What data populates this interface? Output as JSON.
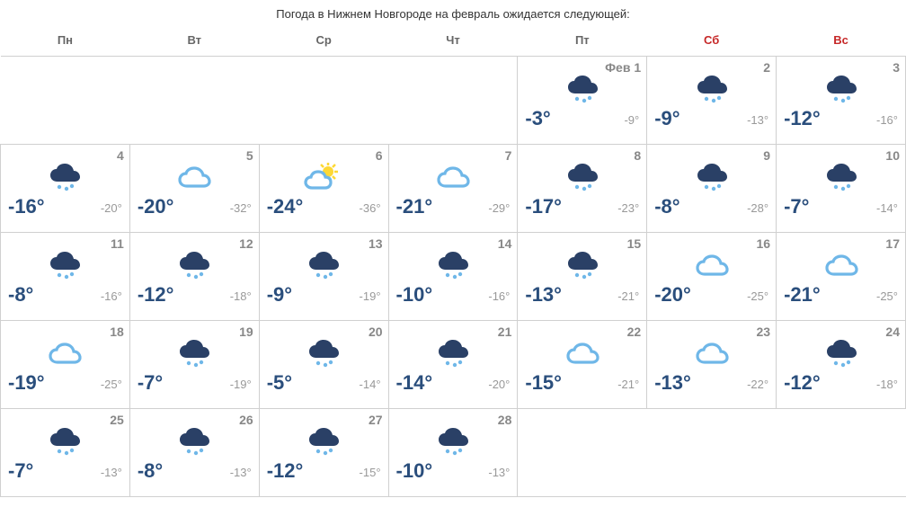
{
  "title": "Погода в Нижнем Новгороде на февраль ожидается следующей:",
  "month_label": "Фев",
  "colors": {
    "hi_temp": "#2a4e7c",
    "lo_temp": "#999999",
    "daynum": "#888888",
    "border": "#d0d0d0",
    "weekday_header": "#666666",
    "weekend_header": "#c62828",
    "icon_dark": "#2a4066",
    "icon_light": "#6fb7e8",
    "icon_sun": "#fdd835"
  },
  "weekdays": [
    {
      "short": "Пн",
      "weekend": false
    },
    {
      "short": "Вт",
      "weekend": false
    },
    {
      "short": "Ср",
      "weekend": false
    },
    {
      "short": "Чт",
      "weekend": false
    },
    {
      "short": "Пт",
      "weekend": false
    },
    {
      "short": "Сб",
      "weekend": true
    },
    {
      "short": "Вс",
      "weekend": true
    }
  ],
  "weeks": [
    [
      {
        "empty": true
      },
      {
        "empty": true
      },
      {
        "empty": true
      },
      {
        "empty": true
      },
      {
        "day": 1,
        "show_month": true,
        "hi": "-3°",
        "lo": "-9°",
        "icon": "snow-dark"
      },
      {
        "day": 2,
        "hi": "-9°",
        "lo": "-13°",
        "icon": "snow-dark"
      },
      {
        "day": 3,
        "hi": "-12°",
        "lo": "-16°",
        "icon": "snow-dark"
      }
    ],
    [
      {
        "day": 4,
        "hi": "-16°",
        "lo": "-20°",
        "icon": "snow-dark"
      },
      {
        "day": 5,
        "hi": "-20°",
        "lo": "-32°",
        "icon": "cloud-light"
      },
      {
        "day": 6,
        "hi": "-24°",
        "lo": "-36°",
        "icon": "sun-cloud"
      },
      {
        "day": 7,
        "hi": "-21°",
        "lo": "-29°",
        "icon": "cloud-light"
      },
      {
        "day": 8,
        "hi": "-17°",
        "lo": "-23°",
        "icon": "snow-dark"
      },
      {
        "day": 9,
        "hi": "-8°",
        "lo": "-28°",
        "icon": "snow-dark"
      },
      {
        "day": 10,
        "hi": "-7°",
        "lo": "-14°",
        "icon": "snow-dark"
      }
    ],
    [
      {
        "day": 11,
        "hi": "-8°",
        "lo": "-16°",
        "icon": "snow-dark"
      },
      {
        "day": 12,
        "hi": "-12°",
        "lo": "-18°",
        "icon": "snow-dark"
      },
      {
        "day": 13,
        "hi": "-9°",
        "lo": "-19°",
        "icon": "snow-dark"
      },
      {
        "day": 14,
        "hi": "-10°",
        "lo": "-16°",
        "icon": "snow-dark"
      },
      {
        "day": 15,
        "hi": "-13°",
        "lo": "-21°",
        "icon": "snow-dark"
      },
      {
        "day": 16,
        "hi": "-20°",
        "lo": "-25°",
        "icon": "cloud-light"
      },
      {
        "day": 17,
        "hi": "-21°",
        "lo": "-25°",
        "icon": "cloud-light"
      }
    ],
    [
      {
        "day": 18,
        "hi": "-19°",
        "lo": "-25°",
        "icon": "cloud-light"
      },
      {
        "day": 19,
        "hi": "-7°",
        "lo": "-19°",
        "icon": "snow-dark"
      },
      {
        "day": 20,
        "hi": "-5°",
        "lo": "-14°",
        "icon": "snow-dark"
      },
      {
        "day": 21,
        "hi": "-14°",
        "lo": "-20°",
        "icon": "snow-dark"
      },
      {
        "day": 22,
        "hi": "-15°",
        "lo": "-21°",
        "icon": "cloud-light"
      },
      {
        "day": 23,
        "hi": "-13°",
        "lo": "-22°",
        "icon": "cloud-light"
      },
      {
        "day": 24,
        "hi": "-12°",
        "lo": "-18°",
        "icon": "snow-dark"
      }
    ],
    [
      {
        "day": 25,
        "hi": "-7°",
        "lo": "-13°",
        "icon": "snow-dark"
      },
      {
        "day": 26,
        "hi": "-8°",
        "lo": "-13°",
        "icon": "snow-dark"
      },
      {
        "day": 27,
        "hi": "-12°",
        "lo": "-15°",
        "icon": "snow-dark"
      },
      {
        "day": 28,
        "hi": "-10°",
        "lo": "-13°",
        "icon": "snow-dark"
      },
      {
        "empty": true
      },
      {
        "empty": true
      },
      {
        "empty": true
      }
    ]
  ]
}
